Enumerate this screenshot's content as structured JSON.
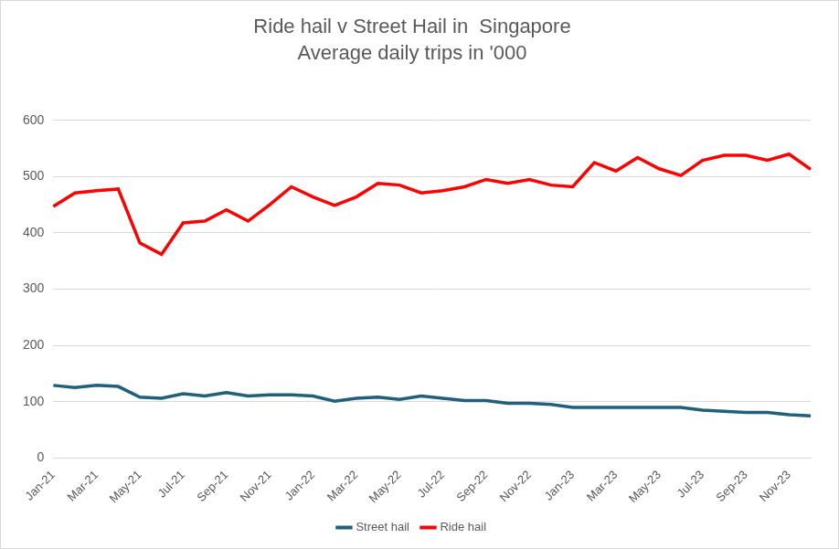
{
  "chart_data": {
    "type": "line",
    "title": "Ride hail v Street Hail in  Singapore",
    "subtitle": "Average daily trips in '000",
    "categories": [
      "Jan-21",
      null,
      "Mar-21",
      null,
      "May-21",
      null,
      "Jul-21",
      null,
      "Sep-21",
      null,
      "Nov-21",
      null,
      "Jan-22",
      null,
      "Mar-22",
      null,
      "May-22",
      null,
      "Jul-22",
      null,
      "Sep-22",
      null,
      "Nov-22",
      null,
      "Jan-23",
      null,
      "Mar-23",
      null,
      "May-23",
      null,
      "Jul-23",
      null,
      "Sep-23",
      null,
      "Nov-23",
      null
    ],
    "series": [
      {
        "name": "Street hail",
        "color": "#215f7a",
        "marker": "none",
        "line_style": "solid",
        "values": [
          129,
          125,
          129,
          127,
          108,
          106,
          114,
          110,
          116,
          110,
          112,
          112,
          110,
          101,
          106,
          108,
          104,
          110,
          106,
          102,
          102,
          97,
          97,
          95,
          90,
          90,
          90,
          90,
          90,
          90,
          85,
          83,
          81,
          81,
          77,
          75
        ]
      },
      {
        "name": "Ride hail",
        "color": "#ff0000",
        "marker": "none",
        "line_style": "solid",
        "values": [
          447,
          471,
          475,
          478,
          382,
          362,
          418,
          421,
          441,
          421,
          450,
          482,
          464,
          449,
          464,
          488,
          485,
          471,
          475,
          482,
          495,
          488,
          495,
          485,
          482,
          525,
          510,
          534,
          514,
          502,
          529,
          538,
          538,
          529,
          540,
          513
        ]
      }
    ],
    "ylim": [
      0,
      600
    ],
    "yticks": [
      0,
      100,
      200,
      300,
      400,
      500,
      600
    ],
    "grid": true,
    "legend": "bottom"
  }
}
